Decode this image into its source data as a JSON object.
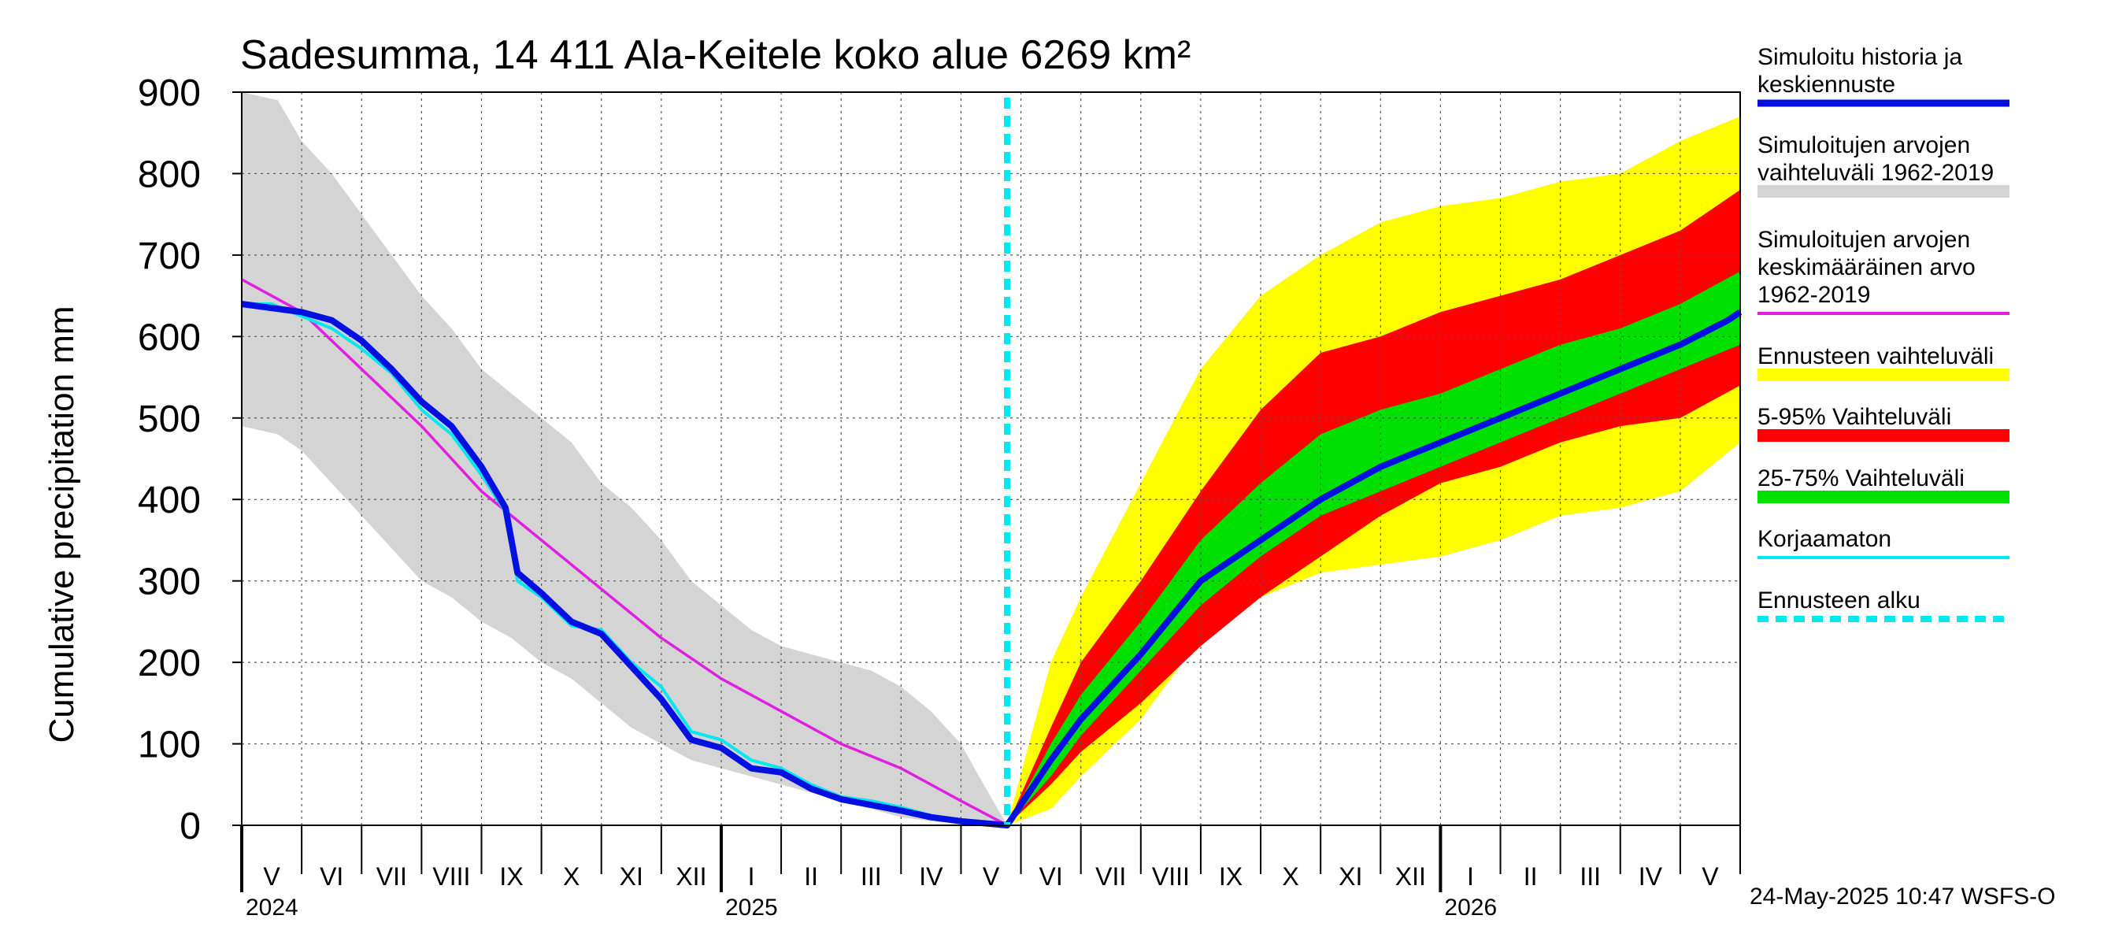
{
  "chart_data": {
    "type": "area",
    "title": "Sadesumma, 14 411 Ala-Keitele koko alue 6269 km²",
    "ylabel": "Cumulative precipitation   mm",
    "xlabel": "",
    "ylim": [
      0,
      900
    ],
    "yticks": [
      0,
      100,
      200,
      300,
      400,
      500,
      600,
      700,
      800,
      900
    ],
    "grid": true,
    "legend_position": "right",
    "x_unit": "months since start of May 2024",
    "xlim": [
      0,
      25
    ],
    "month_labels": [
      "V",
      "VI",
      "VII",
      "VIII",
      "IX",
      "X",
      "XI",
      "XII",
      "I",
      "II",
      "III",
      "IV",
      "V",
      "VI",
      "VII",
      "VIII",
      "IX",
      "X",
      "XI",
      "XII",
      "I",
      "II",
      "III",
      "IV",
      "V"
    ],
    "year_labels": [
      {
        "label": "2024",
        "month": 0
      },
      {
        "label": "2025",
        "month": 8
      },
      {
        "label": "2026",
        "month": 20
      }
    ],
    "forecast_start": 12.77,
    "footer": "24-May-2025 10:47 WSFS-O",
    "legend": [
      {
        "label": "Simuloitu historia ja keskiennuste",
        "lines": [
          "Simuloitu historia ja",
          "keskiennuste"
        ],
        "color": "#0010e0",
        "style": "line",
        "key": "sim"
      },
      {
        "label": "Simuloitujen arvojen vaihteluväli 1962-2019",
        "lines": [
          "Simuloitujen arvojen",
          "vaihteluväli 1962-2019"
        ],
        "color": "#d4d4d4",
        "style": "band",
        "key": "hist_range"
      },
      {
        "label": "Simuloitujen arvojen keskimääräinen arvo 1962-2019",
        "lines": [
          "Simuloitujen arvojen",
          "keskimääräinen arvo",
          "   1962-2019"
        ],
        "color": "#e020e0",
        "style": "line",
        "key": "hist_mean"
      },
      {
        "label": "Ennusteen vaihteluväli",
        "lines": [
          "Ennusteen vaihteluväli"
        ],
        "color": "#ffff00",
        "style": "band",
        "key": "fc_range"
      },
      {
        "label": "5-95% Vaihteluväli",
        "lines": [
          "5-95% Vaihteluväli"
        ],
        "color": "#ff0000",
        "style": "band",
        "key": "fc_5_95"
      },
      {
        "label": "25-75% Vaihteluväli",
        "lines": [
          "25-75% Vaihteluväli"
        ],
        "color": "#00e000",
        "style": "band",
        "key": "fc_25_75"
      },
      {
        "label": "Korjaamaton",
        "lines": [
          "Korjaamaton"
        ],
        "color": "#00e8f0",
        "style": "line",
        "key": "uncorrected"
      },
      {
        "label": "Ennusteen alku",
        "lines": [
          "Ennusteen alku"
        ],
        "color": "#00e8f0",
        "style": "dashed",
        "key": "fc_start"
      }
    ],
    "series": {
      "hist_range": {
        "x": [
          0,
          0.6,
          1,
          1.5,
          2,
          2.5,
          3,
          3.5,
          4,
          4.5,
          5,
          5.5,
          6,
          6.5,
          7,
          7.5,
          8,
          8.5,
          9,
          9.5,
          10,
          10.5,
          11,
          11.5,
          12,
          12.3,
          12.77
        ],
        "upper": [
          900,
          890,
          840,
          800,
          750,
          700,
          650,
          610,
          560,
          530,
          500,
          470,
          420,
          390,
          350,
          300,
          270,
          240,
          220,
          210,
          200,
          190,
          170,
          140,
          100,
          60,
          0
        ],
        "lower": [
          490,
          480,
          460,
          420,
          380,
          340,
          300,
          280,
          250,
          230,
          200,
          180,
          150,
          120,
          100,
          80,
          70,
          60,
          50,
          40,
          30,
          20,
          10,
          5,
          2,
          0,
          0
        ]
      },
      "hist_mean": {
        "x": [
          0,
          1,
          2,
          3,
          4,
          5,
          6,
          7,
          8,
          9,
          10,
          11,
          12,
          12.77
        ],
        "y": [
          670,
          630,
          560,
          490,
          410,
          350,
          290,
          230,
          180,
          140,
          100,
          70,
          30,
          0
        ]
      },
      "sim": {
        "x": [
          0,
          0.5,
          1,
          1.5,
          2,
          2.5,
          3,
          3.5,
          4,
          4.4,
          4.6,
          5,
          5.5,
          6,
          6.5,
          7,
          7.5,
          8,
          8.5,
          9,
          9.5,
          10,
          10.5,
          11,
          11.5,
          12,
          12.77,
          13.5,
          14,
          15,
          16,
          17,
          18,
          19,
          20,
          21,
          22,
          23,
          24,
          24.8,
          25
        ],
        "y": [
          640,
          635,
          630,
          620,
          595,
          560,
          520,
          490,
          440,
          390,
          310,
          285,
          250,
          235,
          195,
          155,
          105,
          95,
          70,
          65,
          45,
          32,
          25,
          18,
          10,
          5,
          0,
          80,
          130,
          210,
          300,
          350,
          400,
          440,
          470,
          500,
          530,
          560,
          590,
          620,
          630
        ]
      },
      "uncorrected": {
        "x": [
          0,
          0.5,
          1,
          1.5,
          2,
          2.5,
          3,
          3.5,
          4,
          4.4,
          4.6,
          5,
          5.5,
          6,
          6.5,
          7,
          7.5,
          8,
          8.5,
          9,
          9.5,
          10,
          10.5,
          11,
          11.5,
          12,
          12.77
        ],
        "y": [
          640,
          640,
          625,
          610,
          585,
          555,
          510,
          480,
          430,
          385,
          300,
          280,
          245,
          240,
          200,
          170,
          115,
          105,
          80,
          70,
          50,
          35,
          30,
          22,
          12,
          6,
          0
        ]
      },
      "fc_range": {
        "x": [
          12.77,
          13.5,
          14,
          15,
          16,
          17,
          18,
          19,
          20,
          21,
          22,
          23,
          24,
          25
        ],
        "upper": [
          0,
          200,
          280,
          420,
          560,
          650,
          700,
          740,
          760,
          770,
          790,
          800,
          840,
          870
        ],
        "lower": [
          0,
          20,
          60,
          130,
          230,
          280,
          310,
          320,
          330,
          350,
          380,
          390,
          410,
          470
        ]
      },
      "fc_5_95": {
        "x": [
          12.77,
          13.5,
          14,
          15,
          16,
          17,
          18,
          19,
          20,
          21,
          22,
          23,
          24,
          25
        ],
        "upper": [
          0,
          120,
          200,
          300,
          410,
          510,
          580,
          600,
          630,
          650,
          670,
          700,
          730,
          780
        ],
        "lower": [
          0,
          50,
          90,
          150,
          220,
          280,
          330,
          380,
          420,
          440,
          470,
          490,
          500,
          540
        ]
      },
      "fc_25_75": {
        "x": [
          12.77,
          13.5,
          14,
          15,
          16,
          17,
          18,
          19,
          20,
          21,
          22,
          23,
          24,
          25
        ],
        "upper": [
          0,
          100,
          160,
          250,
          350,
          420,
          480,
          510,
          530,
          560,
          590,
          610,
          640,
          680
        ],
        "lower": [
          0,
          60,
          110,
          190,
          270,
          330,
          380,
          410,
          440,
          470,
          500,
          530,
          560,
          590
        ]
      }
    }
  }
}
